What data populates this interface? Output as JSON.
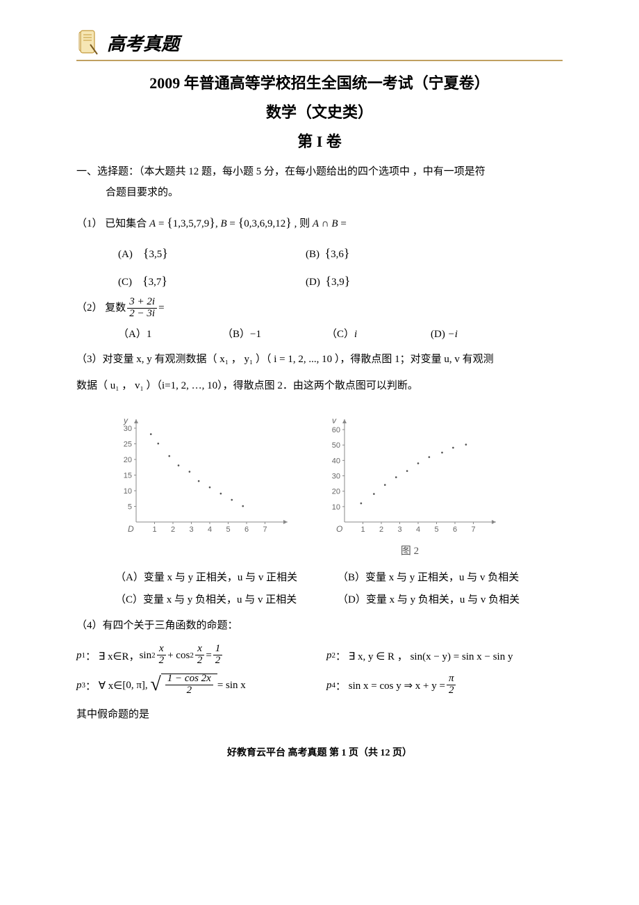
{
  "header": {
    "banner_text": "高考真题"
  },
  "titles": {
    "main": "2009 年普通高等学校招生全国统一考试（宁夏卷）",
    "sub": "数学（文史类）",
    "section": "第 I 卷"
  },
  "instruction": {
    "line1": "一、选择题：（本大题共 12 题，每小题 5 分，在每小题给出的四个选项中 ，中有一项是符",
    "line2": "合题目要求的。"
  },
  "q1": {
    "stem_prefix": "（1）  已知集合 ",
    "set_A": "A = {1, 3, 5, 7, 9}",
    "set_B": "B = {0, 3, 6, 9, 12}",
    "stem_suffix": " ，则 A ∩ B =",
    "options": {
      "A": "{3, 5}",
      "B": "{3, 6}",
      "C": "{3, 7}",
      "D": "{3, 9}"
    }
  },
  "q2": {
    "stem_prefix": "（2）  复数 ",
    "frac_num": "3 + 2i",
    "frac_den": "2 − 3i",
    "stem_suffix": " =",
    "options": {
      "A": "1",
      "B": "−1",
      "C": "i",
      "D": "−i"
    }
  },
  "q3": {
    "line1": "（3）对变量 x, y  有观测数据（ x₁ ，  y₁ ）（ i = 1, 2, ..., 10 ），得散点图 1；对变量 u, v 有观测",
    "line2": "数据（ u₁ ， v₁ ）（i=1, 2, …, 10），得散点图 2．由这两个散点图可以判断。",
    "chart1": {
      "type": "scatter",
      "x_label": "D",
      "y_label": "y",
      "ylim": [
        0,
        32
      ],
      "ytick_step": 5,
      "ytick_labels": [
        "5",
        "10",
        "15",
        "20",
        "25",
        "30"
      ],
      "xlim": [
        0,
        8
      ],
      "xtick_labels": [
        "1",
        "2",
        "3",
        "4",
        "5",
        "6",
        "7"
      ],
      "points": [
        [
          0.8,
          28
        ],
        [
          1.2,
          25
        ],
        [
          1.8,
          21
        ],
        [
          2.3,
          18
        ],
        [
          2.9,
          16
        ],
        [
          3.4,
          13
        ],
        [
          4.0,
          11
        ],
        [
          4.6,
          9
        ],
        [
          5.2,
          7
        ],
        [
          5.8,
          5
        ]
      ],
      "point_color": "#555555",
      "axis_color": "#888888",
      "background_color": "#ffffff"
    },
    "chart2": {
      "type": "scatter",
      "x_label": "O",
      "y_label": "v",
      "caption": "图 2",
      "ylim": [
        0,
        65
      ],
      "ytick_step": 10,
      "ytick_labels": [
        "10",
        "20",
        "30",
        "40",
        "50",
        "60"
      ],
      "xlim": [
        0,
        8
      ],
      "xtick_labels": [
        "1",
        "2",
        "3",
        "4",
        "5",
        "6",
        "7"
      ],
      "points": [
        [
          0.9,
          12
        ],
        [
          1.6,
          18
        ],
        [
          2.2,
          24
        ],
        [
          2.8,
          29
        ],
        [
          3.4,
          33
        ],
        [
          4.0,
          38
        ],
        [
          4.6,
          42
        ],
        [
          5.3,
          45
        ],
        [
          5.9,
          48
        ],
        [
          6.6,
          50
        ]
      ],
      "point_color": "#555555",
      "axis_color": "#888888",
      "background_color": "#ffffff"
    },
    "options": {
      "A": "（A）变量 x 与 y 正相关，u 与 v 正相关",
      "B": "（B）变量 x 与 y 正相关，u 与 v 负相关",
      "C": "（C）变量 x 与 y 负相关，u 与 v 正相关",
      "D": "（D）变量 x 与 y 负相关，u 与 v 负相关"
    }
  },
  "q4": {
    "stem": "（4）有四个关于三角函数的命题：",
    "p1_label": "p₁：",
    "p1_text_a": " ∃ x∈R， ",
    "p1_sin2": "sin²",
    "p1_frac1_num": "x",
    "p1_frac1_den": "2",
    "p1_plus": " + cos²",
    "p1_frac2_num": "x",
    "p1_frac2_den": "2",
    "p1_eq": " = ",
    "p1_frac3_num": "1",
    "p1_frac3_den": "2",
    "p2_label": "p₂：",
    "p2_text": " ∃ x, y ∈ R ， sin(x − y) = sin x − sin y",
    "p3_label": "p₃：",
    "p3_text_a": "∀ x∈",
    "p3_interval": "[0, π]",
    "p3_comma": "，",
    "p3_sqrt_num": "1 − cos 2x",
    "p3_sqrt_den": "2",
    "p3_eq": " = sin x",
    "p4_label": "p₄：",
    "p4_text_a": " sin x = cos y ⇒ x + y = ",
    "p4_frac_num": "π",
    "p4_frac_den": "2",
    "tail": "其中假命题的是"
  },
  "footer": {
    "text_a": "好教育云平台  高考真题 第 ",
    "page_cur": "1",
    "text_b": " 页（共 ",
    "page_total": "12",
    "text_c": " 页）"
  },
  "colors": {
    "banner_rule": "#c0a060",
    "text": "#000000",
    "axis": "#888888",
    "point": "#555555",
    "background": "#ffffff"
  },
  "fonts": {
    "body_family": "SimSun",
    "math_family": "Times New Roman",
    "title_size_pt": 16,
    "body_size_pt": 11
  }
}
